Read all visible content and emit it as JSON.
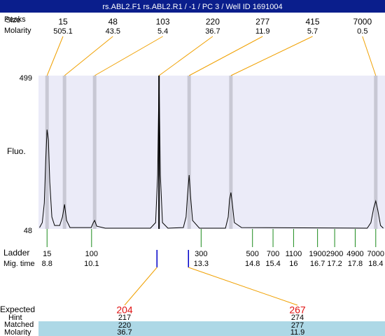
{
  "header": {
    "title": "rs.ABL2.F1  rs.ABL2.R1 / -1 / PC 3 / Well ID 1691004"
  },
  "chart_data": {
    "type": "line",
    "y_label": "Fluo.",
    "ylim": [
      48,
      499
    ],
    "yticks": [
      48,
      499
    ],
    "xlim": [
      8.55,
      18.67
    ],
    "color": "#000000",
    "x": [
      8.58,
      8.66,
      8.72,
      8.76,
      8.8,
      8.84,
      8.88,
      8.94,
      9.02,
      9.17,
      9.25,
      9.31,
      9.37,
      9.47,
      10.09,
      10.15,
      10.19,
      10.25,
      10.5,
      11.82,
      11.97,
      12.03,
      12.07,
      12.11,
      12.17,
      12.33,
      12.78,
      12.86,
      12.9,
      12.95,
      12.99,
      13.05,
      13.25,
      14.01,
      14.09,
      14.13,
      14.17,
      14.21,
      14.27,
      14.48,
      18.15,
      18.26,
      18.34,
      18.4,
      18.46,
      18.54,
      18.62
    ],
    "values": [
      52,
      66.5,
      124,
      248,
      340,
      309,
      186,
      83,
      58,
      58,
      83,
      120,
      73,
      52,
      52,
      66.5,
      73,
      56,
      50,
      50,
      66.5,
      206.5,
      499,
      206.5,
      66.5,
      50,
      52,
      83,
      145,
      206.5,
      145,
      73,
      50,
      50,
      83,
      134.5,
      155,
      124,
      66.5,
      52,
      50,
      66.5,
      110,
      130,
      103.5,
      58,
      50
    ]
  },
  "peaks": {
    "labels": [
      "Peaks",
      "Size",
      "Molarity"
    ],
    "sizes": [
      15,
      48,
      103,
      220,
      277,
      415,
      7000
    ],
    "molarity": [
      505.1,
      43.5,
      5.4,
      36.7,
      11.9,
      5.7,
      0.5
    ],
    "times": [
      8.8,
      9.31,
      10.19,
      12.07,
      12.95,
      14.17,
      18.4
    ],
    "selected": 3
  },
  "ladder": {
    "labels": [
      "Ladder",
      "Mig. time"
    ],
    "sizes": [
      15,
      100,
      300,
      500,
      700,
      1100,
      1900,
      2900,
      4900,
      7000
    ],
    "times": [
      8.8,
      10.1,
      13.3,
      14.8,
      15.4,
      16,
      16.7,
      17.2,
      17.8,
      18.4
    ]
  },
  "expected": {
    "labels": [
      "Expected",
      "Hint",
      "Matched",
      "Molarity"
    ],
    "expected": [
      204,
      267
    ],
    "hint": [
      217,
      274
    ],
    "matched": [
      220,
      277
    ],
    "molarity": [
      36.7,
      11.9
    ],
    "times": [
      12.01,
      12.93
    ]
  }
}
